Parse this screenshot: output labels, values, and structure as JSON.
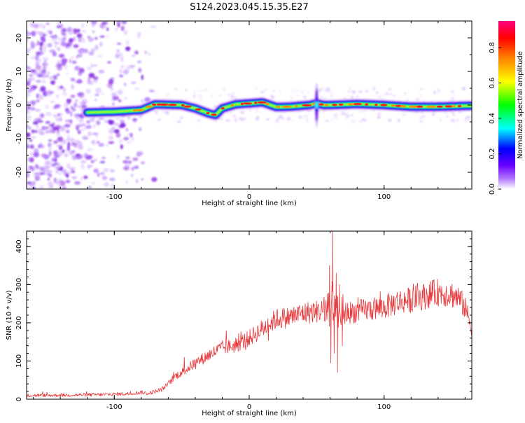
{
  "figure": {
    "title": "S124.2023.045.15.35.E27"
  },
  "chart_data": [
    {
      "type": "heatmap",
      "xlabel": "Height of straight line (km)",
      "ylabel": "Frequency (Hz)",
      "xlim": [
        -165,
        165
      ],
      "ylim": [
        -25,
        25
      ],
      "xticks": [
        -100,
        0,
        100
      ],
      "yticks": [
        -20,
        -10,
        0,
        10,
        20
      ],
      "colorbar": {
        "label": "Normalized spectral amplitude",
        "range": [
          0.0,
          0.95
        ],
        "ticks": [
          0.0,
          0.2,
          0.4,
          0.6,
          0.8
        ],
        "colors": [
          "#ffffff",
          "#6a00ff",
          "#0000ff",
          "#00ffff",
          "#00ff00",
          "#ffff00",
          "#ff8000",
          "#ff0000",
          "#ff0080"
        ]
      },
      "ridge": {
        "x": [
          -120,
          -100,
          -80,
          -70,
          -50,
          -40,
          -30,
          -25,
          -20,
          -10,
          0,
          10,
          20,
          30,
          45,
          50,
          55,
          60,
          80,
          100,
          120,
          140,
          165
        ],
        "y": [
          -2.2,
          -2.0,
          -1.5,
          0.2,
          0.0,
          -1.0,
          -2.5,
          -3.0,
          -1.0,
          0.2,
          0.5,
          0.8,
          -0.6,
          -0.5,
          0.0,
          0.5,
          0.0,
          0.0,
          0.3,
          0.0,
          -0.5,
          -0.5,
          -0.2
        ]
      },
      "noise_region": {
        "x_range": [
          -165,
          -70
        ],
        "y_range": [
          -25,
          25
        ]
      }
    },
    {
      "type": "line",
      "xlabel": "Height of straight line (km)",
      "ylabel": "SNR (10 * v/v)",
      "xlim": [
        -165,
        165
      ],
      "ylim": [
        0,
        440
      ],
      "xticks": [
        -100,
        0,
        100
      ],
      "yticks": [
        0,
        100,
        200,
        300,
        400
      ],
      "series": [
        {
          "color": "#e8383b",
          "x": [
            -165,
            -150,
            -130,
            -110,
            -90,
            -80,
            -75,
            -70,
            -65,
            -60,
            -55,
            -50,
            -40,
            -30,
            -20,
            -10,
            0,
            10,
            20,
            30,
            40,
            50,
            55,
            60,
            62,
            65,
            70,
            80,
            90,
            100,
            110,
            120,
            130,
            140,
            150,
            155,
            160,
            165
          ],
          "y": [
            10,
            10,
            11,
            12,
            14,
            18,
            15,
            20,
            25,
            40,
            60,
            70,
            95,
            115,
            135,
            140,
            160,
            185,
            210,
            215,
            225,
            230,
            232,
            230,
            240,
            210,
            225,
            230,
            235,
            240,
            255,
            260,
            270,
            280,
            275,
            265,
            240,
            190
          ]
        }
      ],
      "spikes": [
        {
          "x": 59.5,
          "y": 350
        },
        {
          "x": 60.5,
          "y": 95
        },
        {
          "x": 62.0,
          "y": 440
        },
        {
          "x": 63.0,
          "y": 120
        },
        {
          "x": 64.5,
          "y": 330
        },
        {
          "x": 65.5,
          "y": 70
        },
        {
          "x": 67.0,
          "y": 300
        },
        {
          "x": 69.0,
          "y": 140
        }
      ]
    }
  ]
}
